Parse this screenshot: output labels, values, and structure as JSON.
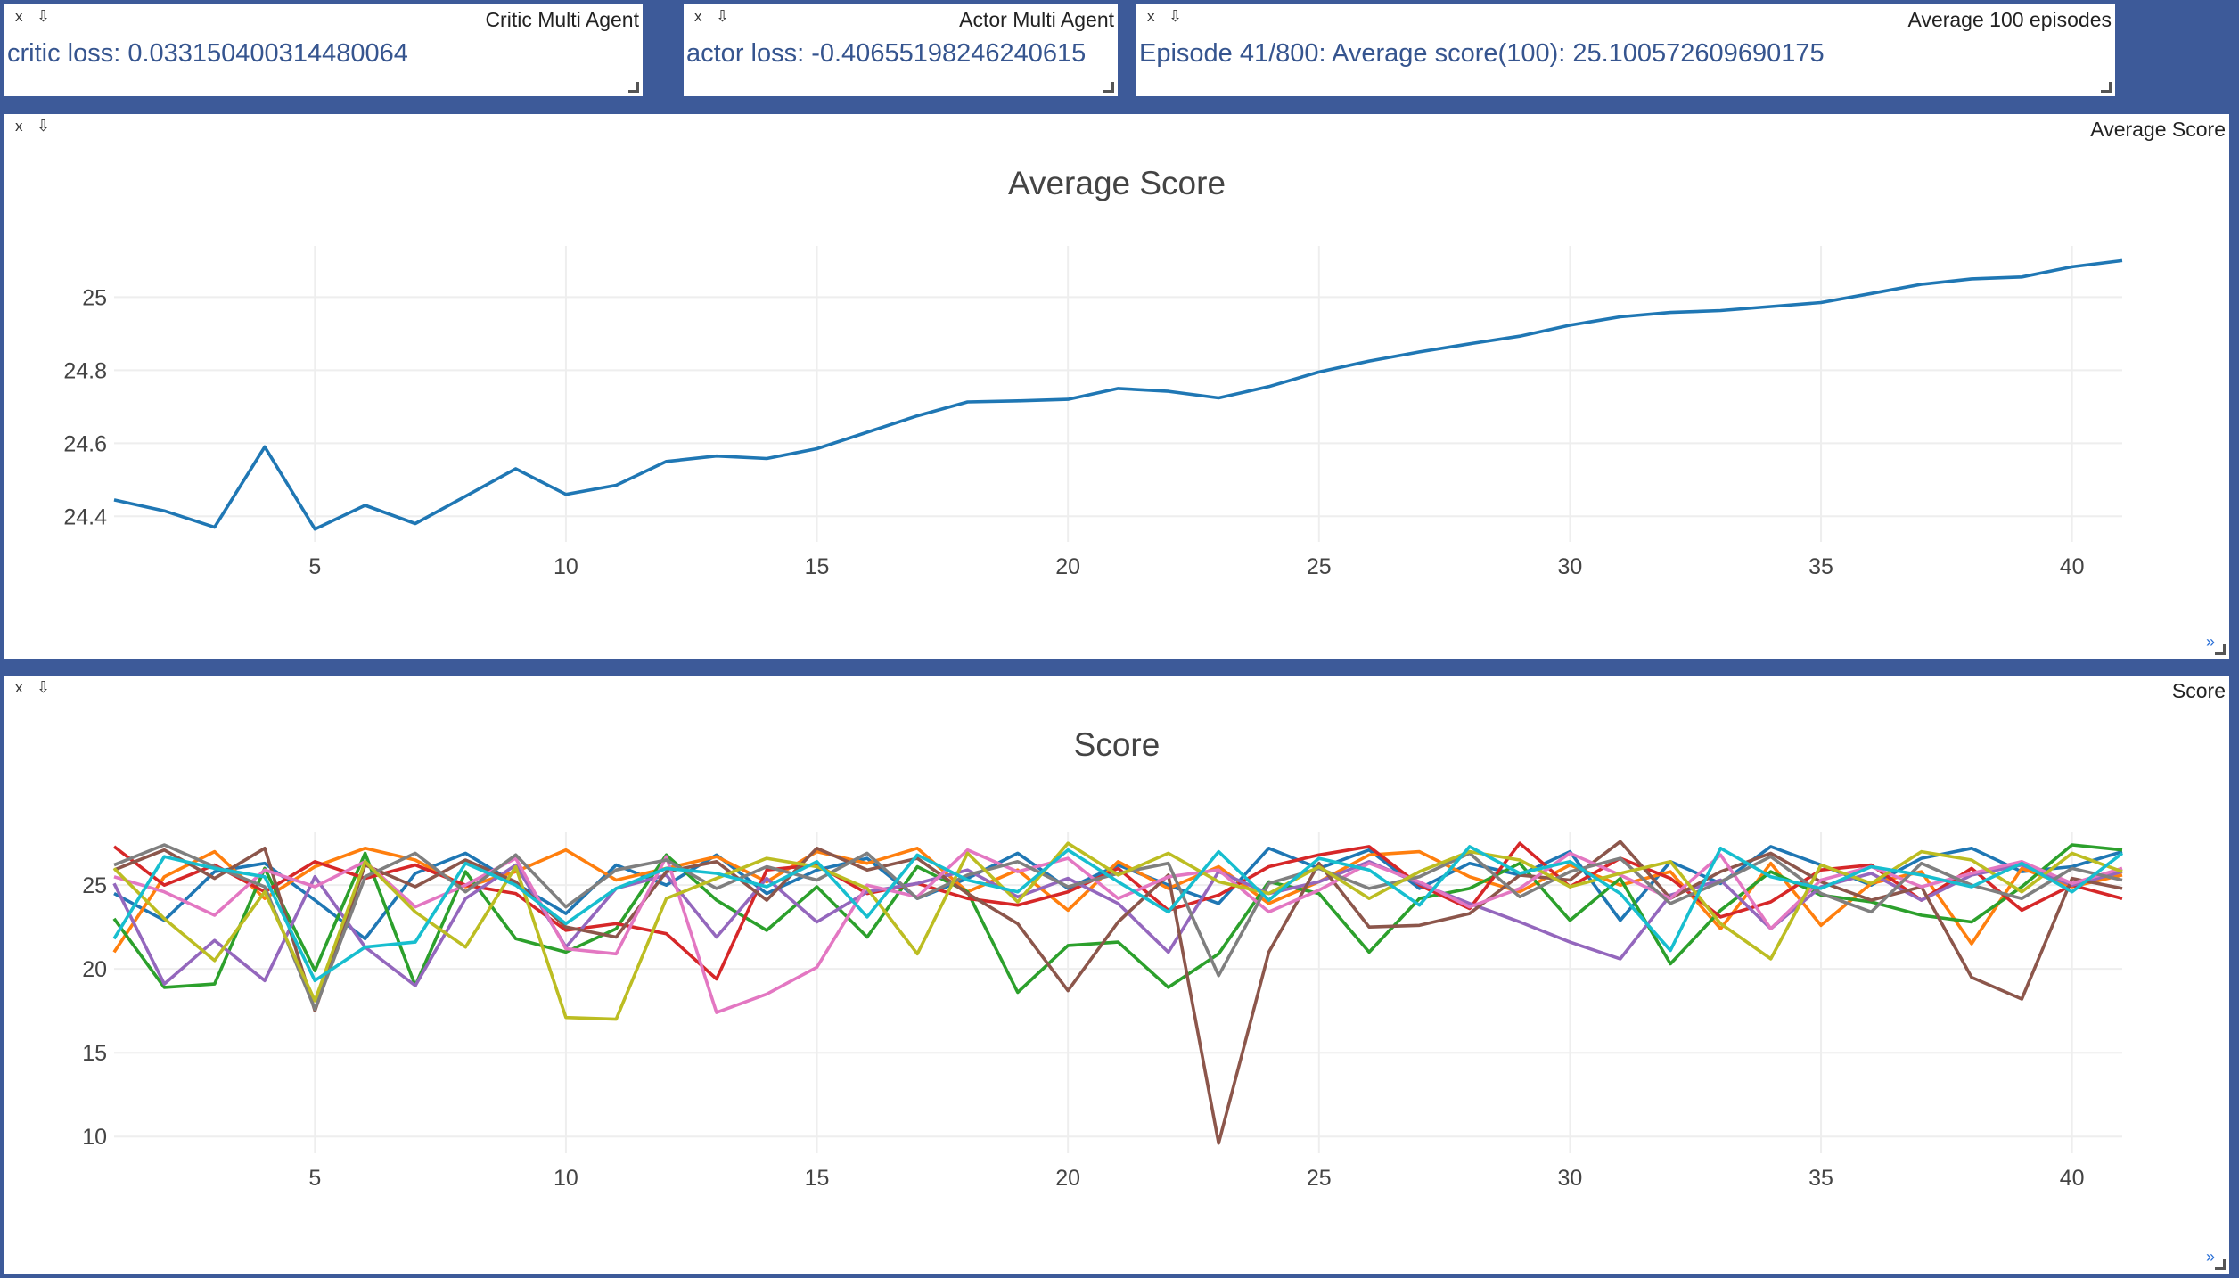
{
  "panes": {
    "critic": {
      "close": "x",
      "download": "⇩",
      "title": "Critic Multi Agent",
      "text": "critic loss: 0.033150400314480064"
    },
    "actor": {
      "close": "x",
      "download": "⇩",
      "title": "Actor Multi Agent",
      "text": "actor loss: -0.40655198246240615"
    },
    "avg100": {
      "close": "x",
      "download": "⇩",
      "title": "Average 100 episodes",
      "text": "Episode 41/800: Average score(100): 25.100572609690175"
    },
    "avgplot": {
      "close": "x",
      "download": "⇩",
      "title": "Average Score",
      "expand": "»"
    },
    "scoreplot": {
      "close": "x",
      "download": "⇩",
      "title": "Score",
      "expand": "»"
    }
  },
  "colors": {
    "background": "#3d5a99",
    "text_accent": "#36558f",
    "line_primary": "#1f77b4"
  },
  "chart_data": [
    {
      "type": "line",
      "title": "Average Score",
      "xlabel": "",
      "ylabel": "",
      "xlim": [
        1,
        41
      ],
      "ylim": [
        24.33,
        25.14
      ],
      "xticks": [
        5,
        10,
        15,
        20,
        25,
        30,
        35,
        40
      ],
      "yticks": [
        24.4,
        24.6,
        24.8,
        25
      ],
      "ytick_labels": [
        "24.4",
        "24.6",
        "24.8",
        "25"
      ],
      "grid": true,
      "series": [
        {
          "color": "#1f77b4",
          "x": [
            1,
            2,
            3,
            4,
            5,
            6,
            7,
            8,
            9,
            10,
            11,
            12,
            13,
            14,
            15,
            16,
            17,
            18,
            19,
            20,
            21,
            22,
            23,
            24,
            25,
            26,
            27,
            28,
            29,
            30,
            31,
            32,
            33,
            34,
            35,
            36,
            37,
            38,
            39,
            40,
            41
          ],
          "y": [
            24.445,
            24.415,
            24.37,
            24.59,
            24.365,
            24.43,
            24.38,
            24.455,
            24.53,
            24.46,
            24.485,
            24.55,
            24.565,
            24.558,
            24.585,
            24.63,
            24.675,
            24.713,
            24.716,
            24.72,
            24.75,
            24.742,
            24.724,
            24.755,
            24.795,
            24.825,
            24.85,
            24.872,
            24.893,
            24.923,
            24.946,
            24.958,
            24.963,
            24.974,
            24.985,
            25.01,
            25.035,
            25.05,
            25.055,
            25.083,
            25.1
          ]
        }
      ]
    },
    {
      "type": "line",
      "title": "Score",
      "xlabel": "",
      "ylabel": "",
      "xlim": [
        1,
        41
      ],
      "ylim": [
        9.0,
        28.2
      ],
      "xticks": [
        5,
        10,
        15,
        20,
        25,
        30,
        35,
        40
      ],
      "yticks": [
        10,
        15,
        20,
        25
      ],
      "grid": true,
      "series": [
        {
          "color": "#1f77b4",
          "y": [
            24.5,
            22.9,
            25.8,
            26.3,
            24.1,
            21.8,
            25.7,
            26.9,
            25.1,
            23.3,
            26.2,
            25.0,
            26.8,
            24.5,
            25.9,
            26.6,
            24.2,
            25.4,
            26.9,
            24.8,
            26.2,
            25.0,
            23.9,
            27.2,
            26.0,
            27.1,
            24.8,
            26.3,
            25.6,
            27.0,
            22.9,
            26.4,
            25.1,
            27.3,
            26.2,
            25.0,
            26.6,
            27.2,
            25.8,
            26.1,
            27.0
          ]
        },
        {
          "color": "#ff7f0e",
          "y": [
            21.0,
            25.5,
            27.0,
            24.2,
            26.1,
            27.2,
            26.5,
            24.9,
            25.8,
            27.1,
            25.3,
            26.0,
            26.7,
            25.2,
            27.0,
            26.3,
            27.2,
            24.6,
            25.9,
            23.5,
            26.4,
            24.8,
            26.1,
            23.9,
            25.2,
            26.8,
            27.0,
            25.5,
            24.6,
            26.2,
            25.0,
            25.8,
            22.4,
            26.3,
            22.6,
            25.1,
            25.8,
            21.5,
            26.0,
            24.9,
            25.6
          ]
        },
        {
          "color": "#2ca02c",
          "y": [
            23.0,
            18.9,
            19.1,
            26.0,
            19.9,
            26.9,
            19.0,
            25.8,
            21.8,
            21.0,
            22.4,
            26.8,
            24.1,
            22.3,
            24.9,
            21.9,
            26.1,
            24.6,
            18.6,
            21.4,
            21.6,
            18.9,
            20.9,
            25.2,
            24.5,
            21.0,
            24.2,
            24.8,
            26.3,
            22.9,
            25.4,
            20.3,
            23.5,
            25.8,
            24.4,
            24.0,
            23.2,
            22.8,
            24.9,
            27.4,
            27.1
          ]
        },
        {
          "color": "#d62728",
          "y": [
            27.3,
            25.0,
            26.2,
            24.6,
            26.4,
            25.4,
            26.2,
            25.0,
            24.5,
            22.3,
            22.7,
            22.1,
            19.4,
            25.9,
            26.2,
            24.5,
            25.1,
            24.2,
            23.8,
            24.6,
            26.0,
            23.5,
            24.4,
            26.1,
            26.8,
            27.3,
            25.0,
            23.6,
            27.5,
            24.9,
            26.6,
            25.4,
            23.1,
            24.0,
            25.9,
            26.2,
            24.1,
            26.0,
            23.5,
            25.0,
            24.2
          ]
        },
        {
          "color": "#9467bd",
          "y": [
            25.1,
            19.1,
            21.7,
            19.3,
            25.5,
            21.3,
            19.0,
            24.2,
            26.2,
            21.3,
            24.8,
            25.6,
            21.9,
            25.4,
            22.8,
            24.6,
            25.1,
            25.9,
            24.3,
            25.4,
            23.9,
            21.0,
            25.8,
            24.5,
            25.2,
            26.4,
            25.1,
            23.9,
            22.8,
            21.6,
            20.6,
            24.4,
            25.3,
            22.4,
            24.9,
            25.7,
            24.1,
            25.6,
            26.2,
            25.0,
            25.8
          ]
        },
        {
          "color": "#8c564b",
          "y": [
            25.9,
            27.1,
            25.4,
            27.2,
            17.5,
            26.2,
            24.9,
            26.5,
            25.2,
            22.5,
            21.9,
            25.8,
            26.4,
            24.1,
            27.2,
            25.9,
            26.6,
            24.5,
            22.7,
            18.7,
            22.8,
            25.6,
            9.6,
            21.0,
            26.3,
            22.5,
            22.6,
            23.3,
            25.6,
            25.3,
            27.6,
            24.2,
            25.8,
            26.9,
            25.2,
            24.1,
            24.9,
            19.5,
            18.2,
            25.4,
            24.8
          ]
        },
        {
          "color": "#e377c2",
          "y": [
            25.5,
            24.6,
            23.2,
            25.9,
            24.9,
            26.4,
            23.7,
            25.0,
            26.6,
            21.2,
            20.9,
            26.7,
            17.4,
            18.5,
            20.1,
            25.0,
            24.3,
            27.1,
            25.8,
            26.6,
            24.2,
            25.5,
            25.9,
            23.4,
            24.7,
            26.3,
            25.2,
            23.7,
            24.8,
            26.9,
            25.6,
            24.2,
            26.8,
            22.4,
            25.3,
            26.1,
            24.9,
            25.7,
            26.4,
            25.1,
            26.0
          ]
        },
        {
          "color": "#7f7f7f",
          "y": [
            26.2,
            27.4,
            26.1,
            24.9,
            17.6,
            25.5,
            26.9,
            24.6,
            26.8,
            23.7,
            25.9,
            26.5,
            24.8,
            26.1,
            25.3,
            26.9,
            24.2,
            25.6,
            26.4,
            24.9,
            25.7,
            26.3,
            19.6,
            25.1,
            26.0,
            24.8,
            25.5,
            26.9,
            24.3,
            25.8,
            26.6,
            23.9,
            25.2,
            26.7,
            24.5,
            23.4,
            26.3,
            25.0,
            24.2,
            26.0,
            25.3
          ]
        },
        {
          "color": "#bcbd22",
          "y": [
            26.0,
            23.0,
            20.5,
            24.6,
            18.1,
            26.4,
            23.4,
            21.3,
            26.1,
            17.1,
            17.0,
            24.2,
            25.4,
            26.6,
            26.1,
            24.8,
            20.9,
            26.9,
            24.0,
            27.5,
            25.6,
            26.9,
            25.2,
            24.5,
            26.1,
            24.2,
            25.8,
            27.0,
            26.5,
            24.9,
            25.7,
            26.4,
            22.7,
            20.6,
            26.2,
            25.1,
            27.0,
            26.5,
            24.6,
            26.9,
            25.8
          ]
        },
        {
          "color": "#17becf",
          "y": [
            21.8,
            26.7,
            26.0,
            25.5,
            19.3,
            21.3,
            21.6,
            26.3,
            25.0,
            22.7,
            24.8,
            26.0,
            25.7,
            24.9,
            26.4,
            23.1,
            26.8,
            25.3,
            24.6,
            27.1,
            25.2,
            23.4,
            27.0,
            24.1,
            26.6,
            25.9,
            23.8,
            27.3,
            25.7,
            26.4,
            24.5,
            21.1,
            27.2,
            25.5,
            24.8,
            26.1,
            25.6,
            24.9,
            26.3,
            24.6,
            26.9
          ]
        }
      ]
    }
  ]
}
